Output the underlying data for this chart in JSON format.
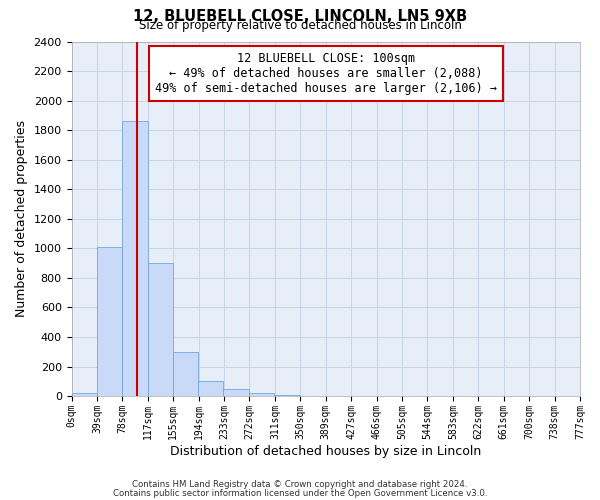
{
  "title1": "12, BLUEBELL CLOSE, LINCOLN, LN5 9XB",
  "title2": "Size of property relative to detached houses in Lincoln",
  "xlabel": "Distribution of detached houses by size in Lincoln",
  "ylabel": "Number of detached properties",
  "bar_left_edges": [
    0,
    39,
    78,
    117,
    155,
    194,
    233,
    272,
    311,
    350,
    389,
    427,
    466,
    505,
    544,
    583,
    622,
    661,
    700,
    738
  ],
  "bar_heights": [
    20,
    1010,
    1860,
    900,
    300,
    100,
    50,
    20,
    10,
    0,
    0,
    0,
    0,
    0,
    0,
    0,
    0,
    0,
    0,
    0
  ],
  "bin_width": 39,
  "bar_color": "#c9daf8",
  "bar_edge_color": "#6fa8dc",
  "grid_color": "#c8d4e8",
  "bg_color": "#e8eef8",
  "vline_x": 100,
  "vline_color": "#cc0000",
  "tick_labels": [
    "0sqm",
    "39sqm",
    "78sqm",
    "117sqm",
    "155sqm",
    "194sqm",
    "233sqm",
    "272sqm",
    "311sqm",
    "350sqm",
    "389sqm",
    "427sqm",
    "466sqm",
    "505sqm",
    "544sqm",
    "583sqm",
    "622sqm",
    "661sqm",
    "700sqm",
    "738sqm",
    "777sqm"
  ],
  "ylim": [
    0,
    2400
  ],
  "yticks": [
    0,
    200,
    400,
    600,
    800,
    1000,
    1200,
    1400,
    1600,
    1800,
    2000,
    2200,
    2400
  ],
  "xlim_max": 777,
  "annotation_title": "12 BLUEBELL CLOSE: 100sqm",
  "annotation_line1": "← 49% of detached houses are smaller (2,088)",
  "annotation_line2": "49% of semi-detached houses are larger (2,106) →",
  "annotation_box_color": "#ffffff",
  "annotation_border_color": "#cc0000",
  "footer1": "Contains HM Land Registry data © Crown copyright and database right 2024.",
  "footer2": "Contains public sector information licensed under the Open Government Licence v3.0."
}
